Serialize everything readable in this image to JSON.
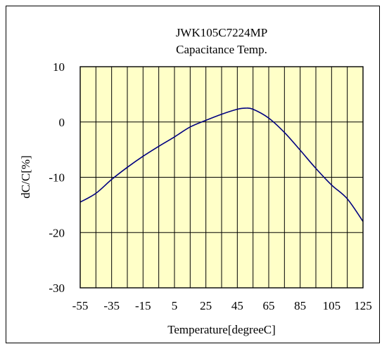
{
  "chart_data": {
    "type": "line",
    "title": "JWK105C7224MP",
    "subtitle": "Capacitance Temp.",
    "xlabel": "Temperature[degreeC]",
    "ylabel": "dC/C[%]",
    "xlim": [
      -55,
      125
    ],
    "ylim": [
      -30,
      10
    ],
    "xticks": [
      -55,
      -35,
      -15,
      5,
      25,
      45,
      65,
      85,
      105,
      125
    ],
    "yticks": [
      10,
      0,
      -10,
      -20,
      -30
    ],
    "grid": true,
    "legend": "none",
    "series": [
      {
        "x": [
          -55,
          -45,
          -35,
          -25,
          -15,
          -5,
          5,
          15,
          25,
          35,
          45,
          50,
          55,
          65,
          75,
          85,
          95,
          105,
          115,
          125
        ],
        "y": [
          -14.5,
          -12.9,
          -10.4,
          -8.2,
          -6.2,
          -4.4,
          -2.7,
          -0.9,
          0.3,
          1.4,
          2.3,
          2.5,
          2.3,
          0.7,
          -1.9,
          -5.1,
          -8.4,
          -11.4,
          -13.9,
          -18.0
        ]
      }
    ]
  },
  "colors": {
    "plot_background": "#ffffc8",
    "line": "#000080",
    "grid": "#000000"
  }
}
